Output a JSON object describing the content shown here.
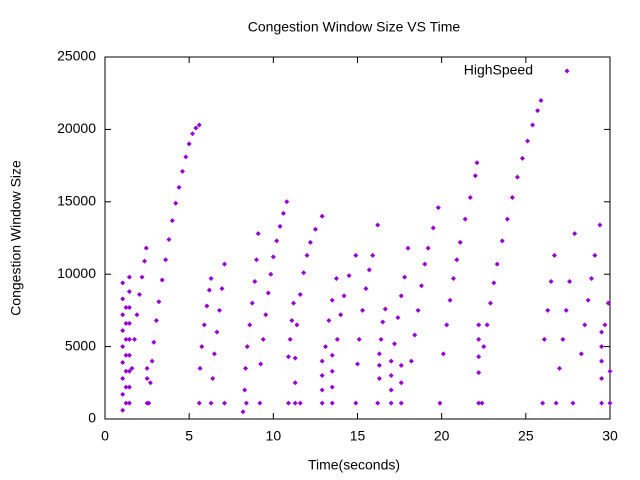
{
  "chart_data": {
    "type": "scatter",
    "title": "Congestion Window Size VS Time",
    "x_label": "Time(seconds)",
    "y_label": "Congestion Window Size",
    "xlim": [
      0,
      30
    ],
    "xticks": [
      0,
      5,
      10,
      15,
      20,
      25,
      30
    ],
    "ylim": [
      0,
      25000
    ],
    "yticks": [
      0,
      5000,
      10000,
      15000,
      20000,
      25000
    ],
    "grid": false,
    "legend_position": "top-right",
    "series": [
      {
        "name": "HighSpeed",
        "color": "#9400d3",
        "x": [
          1.05,
          1.05,
          1.05,
          1.05,
          1.05,
          1.05,
          1.05,
          1.05,
          1.05,
          1.25,
          1.25,
          1.25,
          1.25,
          1.25,
          1.25,
          1.25,
          1.45,
          1.45,
          1.45,
          1.45,
          1.45,
          1.45,
          1.45,
          1.45,
          1.45,
          1.6,
          1.75,
          1.9,
          2.05,
          2.2,
          2.35,
          2.45,
          2.5,
          2.5,
          2.5,
          2.6,
          2.7,
          2.8,
          2.9,
          3.05,
          3.2,
          3.4,
          3.6,
          3.8,
          4.0,
          4.2,
          4.4,
          4.6,
          4.8,
          5.0,
          5.2,
          5.4,
          5.6,
          5.65,
          5.75,
          5.9,
          6.05,
          6.2,
          6.3,
          6.3,
          6.4,
          6.5,
          6.65,
          6.8,
          6.95,
          7.1,
          7.1,
          5.6,
          8.2,
          8.4,
          8.3,
          8.35,
          8.45,
          8.6,
          8.75,
          8.9,
          9.0,
          9.1,
          9.2,
          9.25,
          9.4,
          9.55,
          9.7,
          9.85,
          10.0,
          10.2,
          10.4,
          10.6,
          10.8,
          10.9,
          10.9,
          11.0,
          11.1,
          11.2,
          11.3,
          11.3,
          11.3,
          11.4,
          11.6,
          11.8,
          12.0,
          12.2,
          12.5,
          12.9,
          11.6,
          12.9,
          12.9,
          12.9,
          12.9,
          13.1,
          13.3,
          13.5,
          13.75,
          13.5,
          13.5,
          13.5,
          13.5,
          13.8,
          14.0,
          14.2,
          14.5,
          14.9,
          14.9,
          15.0,
          15.1,
          15.3,
          15.5,
          15.7,
          15.9,
          16.2,
          16.2,
          16.3,
          16.3,
          16.3,
          16.4,
          16.5,
          16.65,
          17.0,
          17.0,
          17.0,
          17.0,
          17.2,
          17.4,
          17.6,
          17.8,
          18.0,
          17.6,
          17.6,
          17.6,
          18.2,
          18.4,
          18.6,
          18.8,
          19.0,
          19.2,
          19.5,
          19.8,
          19.9,
          20.1,
          20.3,
          20.5,
          20.7,
          20.9,
          21.1,
          21.4,
          21.7,
          22.0,
          22.1,
          22.2,
          22.2,
          22.2,
          22.2,
          22.2,
          22.5,
          22.7,
          22.9,
          23.1,
          23.3,
          23.6,
          23.9,
          24.2,
          24.5,
          24.8,
          25.1,
          25.4,
          25.7,
          25.9,
          22.4,
          26.0,
          26.1,
          26.3,
          26.5,
          26.7,
          26.8,
          27.0,
          27.2,
          27.4,
          27.6,
          27.9,
          27.8,
          28.3,
          28.5,
          28.7,
          28.9,
          29.1,
          29.4,
          29.5,
          29.5,
          29.5,
          29.5,
          29.5,
          29.7,
          29.9,
          30.0,
          30.0
        ],
        "values": [
          600,
          1700,
          2800,
          3900,
          5000,
          6100,
          7200,
          8300,
          9400,
          1100,
          2200,
          3300,
          4400,
          5500,
          6600,
          7700,
          1100,
          2200,
          3300,
          4400,
          5500,
          6600,
          7700,
          8800,
          9800,
          3500,
          5500,
          7200,
          8600,
          9800,
          10900,
          11800,
          1100,
          2800,
          3500,
          1100,
          2500,
          4000,
          5300,
          6800,
          8100,
          9600,
          11000,
          12400,
          13700,
          14900,
          16000,
          17100,
          18100,
          19000,
          19700,
          20100,
          20300,
          3500,
          5000,
          6500,
          7800,
          8900,
          9700,
          1100,
          2800,
          4500,
          6000,
          7500,
          9000,
          10700,
          1100,
          1100,
          500,
          1100,
          2000,
          3500,
          5000,
          6500,
          8000,
          9500,
          11000,
          12800,
          1100,
          3800,
          5500,
          7200,
          8700,
          10000,
          11200,
          12300,
          13300,
          14200,
          15000,
          1100,
          4300,
          5500,
          6800,
          8000,
          1100,
          2500,
          4200,
          6500,
          8600,
          10100,
          11300,
          12200,
          13100,
          14000,
          1100,
          1100,
          2000,
          3000,
          4000,
          5000,
          6800,
          8200,
          9700,
          1100,
          2200,
          3300,
          4400,
          5500,
          7200,
          8500,
          9900,
          11300,
          1100,
          3800,
          5500,
          7500,
          9000,
          10300,
          11300,
          13400,
          1100,
          2800,
          3700,
          4500,
          5500,
          6700,
          7600,
          1100,
          2000,
          3000,
          4000,
          5200,
          7000,
          8500,
          9800,
          11800,
          1100,
          2500,
          3700,
          4000,
          5800,
          7500,
          9200,
          10700,
          11800,
          13200,
          14600,
          1100,
          4500,
          6500,
          8200,
          9700,
          11000,
          12200,
          13800,
          15300,
          16800,
          17700,
          1100,
          3200,
          4300,
          5500,
          6500,
          5000,
          6500,
          8000,
          9400,
          10700,
          12300,
          13800,
          15300,
          16700,
          18000,
          19200,
          20300,
          21300,
          22000,
          1100,
          1100,
          5500,
          7500,
          9500,
          11300,
          1100,
          3500,
          5500,
          7500,
          9500,
          12800,
          1100,
          4500,
          6500,
          8200,
          9700,
          11300,
          13400,
          1100,
          2800,
          4000,
          5000,
          6000,
          6500,
          8000,
          1100,
          3300
        ]
      }
    ]
  }
}
